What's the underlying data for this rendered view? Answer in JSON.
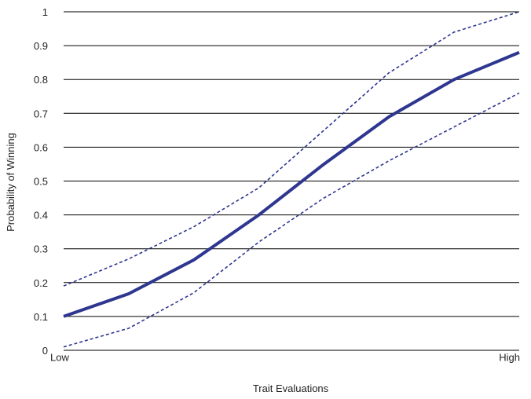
{
  "chart_data": {
    "type": "line",
    "xlabel": "Trait Evaluations",
    "ylabel": "Probability of Winning",
    "x_tick_labels": [
      "Low",
      "High"
    ],
    "x": [
      0,
      1,
      2,
      3,
      4,
      5,
      6,
      7
    ],
    "xlim": [
      0,
      7
    ],
    "ylim": [
      0,
      1
    ],
    "y_ticks": [
      "0",
      "0.1",
      "0.2",
      "0.3",
      "0.4",
      "0.5",
      "0.6",
      "0.7",
      "0.8",
      "0.9",
      "1"
    ],
    "grid": true,
    "legend": "none",
    "series": [
      {
        "style": "dashed",
        "values": [
          0.19,
          0.27,
          0.365,
          0.48,
          0.65,
          0.82,
          0.94,
          1.0
        ]
      },
      {
        "style": "solid",
        "values": [
          0.1,
          0.167,
          0.267,
          0.4,
          0.55,
          0.69,
          0.8,
          0.88
        ]
      },
      {
        "style": "dashed",
        "values": [
          0.01,
          0.065,
          0.17,
          0.32,
          0.45,
          0.56,
          0.66,
          0.76
        ]
      }
    ],
    "colors": {
      "line": "#2e3690",
      "grid": "#000000"
    }
  }
}
